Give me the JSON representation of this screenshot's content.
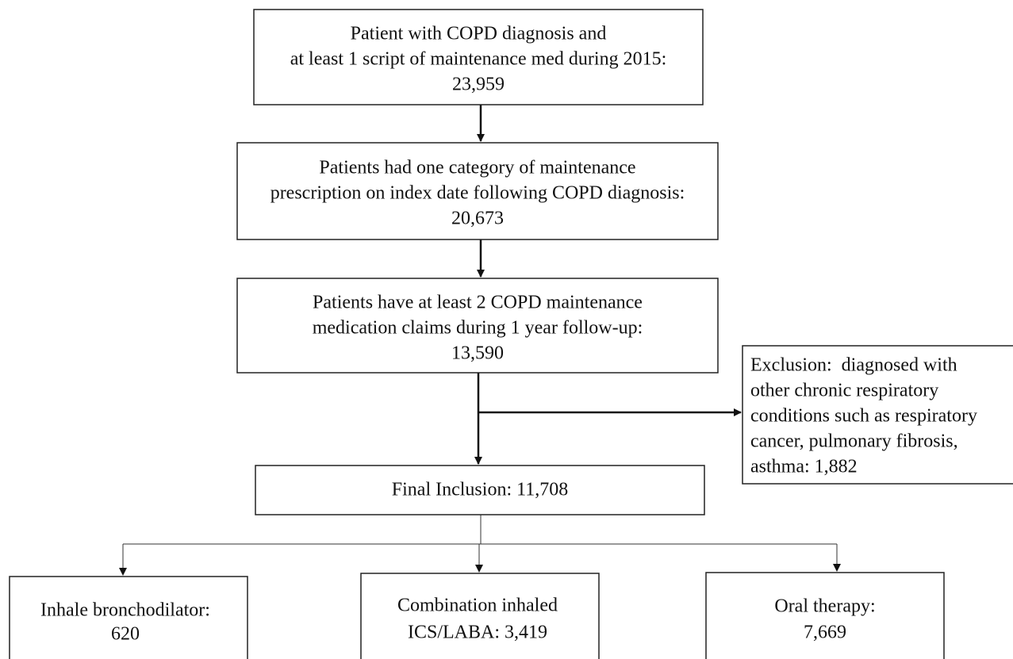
{
  "nodes": [
    {
      "lines": [
        "Patient with COPD diagnosis and",
        "at least 1 script of maintenance med during 2015:",
        "23,959"
      ]
    },
    {
      "lines": [
        "Patients had one category of maintenance",
        "prescription on index date following COPD diagnosis:",
        "20,673"
      ]
    },
    {
      "lines": [
        "Patients have at least 2 COPD maintenance",
        "medication claims during 1 year follow-up:",
        "13,590"
      ]
    },
    {
      "lines": [
        "Exclusion:  diagnosed with",
        "other chronic respiratory",
        "conditions such as respiratory",
        "cancer, pulmonary fibrosis,",
        "asthma: 1,882"
      ]
    },
    {
      "lines": [
        "Final Inclusion: 11,708"
      ]
    },
    {
      "lines": [
        "Inhale bronchodilator:",
        "620"
      ]
    },
    {
      "lines": [
        "Combination inhaled",
        "ICS/LABA: 3,419"
      ]
    },
    {
      "lines": [
        "Oral therapy:",
        "7,669"
      ]
    }
  ]
}
